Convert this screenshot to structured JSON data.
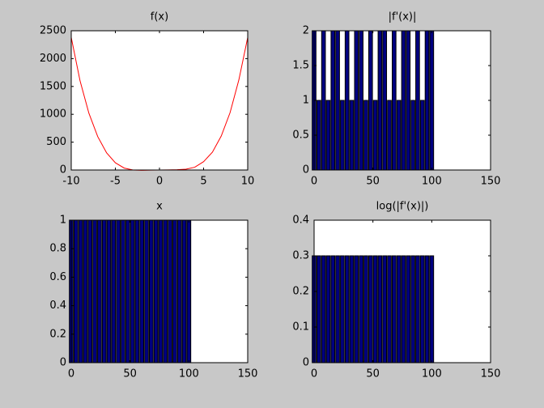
{
  "chart_data": [
    {
      "type": "line",
      "title": "f(x)",
      "color": "#ff0000",
      "x": [
        -10,
        -9,
        -8,
        -7,
        -6,
        -5,
        -4,
        -3,
        -2,
        -1,
        0,
        1,
        2,
        3,
        4,
        5,
        6,
        7,
        8,
        9,
        10
      ],
      "values": [
        2380,
        1600,
        1020,
        600,
        310,
        130,
        35,
        0,
        -5,
        -2,
        0,
        2,
        5,
        15,
        50,
        150,
        320,
        610,
        1030,
        1620,
        2380
      ],
      "xlim": [
        -10,
        10
      ],
      "xticks": [
        -10,
        -5,
        0,
        5,
        10
      ],
      "ylim": [
        0,
        2500
      ],
      "yticks": [
        0,
        500,
        1000,
        1500,
        2000,
        2500
      ]
    },
    {
      "type": "bar",
      "title": "|f'(x)|",
      "color": "#000080",
      "x": [
        0,
        4,
        8,
        12,
        16,
        20,
        24,
        28,
        32,
        36,
        40,
        44,
        48,
        52,
        56,
        60,
        64,
        68,
        72,
        76,
        80,
        84,
        88,
        92,
        96,
        100
      ],
      "values": [
        2,
        1,
        2,
        1,
        2,
        2,
        1,
        2,
        1,
        2,
        2,
        1,
        2,
        1,
        2,
        2,
        1,
        2,
        1,
        2,
        2,
        1,
        2,
        1,
        2,
        2
      ],
      "xlim": [
        0,
        150
      ],
      "xticks": [
        0,
        50,
        100,
        150
      ],
      "ylim": [
        0,
        2
      ],
      "yticks": [
        0,
        0.5,
        1,
        1.5,
        2
      ]
    },
    {
      "type": "bar",
      "title": "x",
      "color": "#000080",
      "x": [
        0,
        4,
        8,
        12,
        16,
        20,
        24,
        28,
        32,
        36,
        40,
        44,
        48,
        52,
        56,
        60,
        64,
        68,
        72,
        76,
        80,
        84,
        88,
        92,
        96,
        100
      ],
      "values": [
        1,
        1,
        1,
        1,
        1,
        1,
        1,
        1,
        1,
        1,
        1,
        1,
        1,
        1,
        1,
        1,
        1,
        1,
        1,
        1,
        1,
        1,
        1,
        1,
        1,
        1
      ],
      "xlim": [
        0,
        150
      ],
      "xticks": [
        0,
        50,
        100,
        150
      ],
      "ylim": [
        0,
        1
      ],
      "yticks": [
        0,
        0.2,
        0.4,
        0.6,
        0.8,
        1
      ]
    },
    {
      "type": "bar",
      "title": "log(|f'(x)|)",
      "color": "#000080",
      "x": [
        0,
        4,
        8,
        12,
        16,
        20,
        24,
        28,
        32,
        36,
        40,
        44,
        48,
        52,
        56,
        60,
        64,
        68,
        72,
        76,
        80,
        84,
        88,
        92,
        96,
        100
      ],
      "values": [
        0.3,
        0.3,
        0.3,
        0.3,
        0.3,
        0.3,
        0.3,
        0.3,
        0.3,
        0.3,
        0.3,
        0.3,
        0.3,
        0.3,
        0.3,
        0.3,
        0.3,
        0.3,
        0.3,
        0.3,
        0.3,
        0.3,
        0.3,
        0.3,
        0.3,
        0.3
      ],
      "xlim": [
        0,
        150
      ],
      "xticks": [
        0,
        50,
        100,
        150
      ],
      "ylim": [
        0,
        0.4
      ],
      "yticks": [
        0,
        0.1,
        0.2,
        0.3,
        0.4
      ]
    }
  ]
}
